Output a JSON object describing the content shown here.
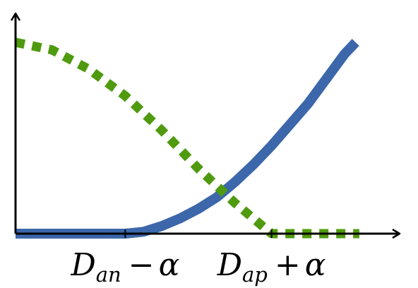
{
  "chart_data": {
    "type": "line",
    "title": "",
    "xlabel": "",
    "ylabel": "",
    "xlim": [
      0,
      1
    ],
    "ylim": [
      0,
      1
    ],
    "grid": false,
    "legend": "none",
    "x_ticks": [
      {
        "value": 0.3,
        "label_main": "D",
        "label_sub": "an",
        "label_op": "−",
        "label_tail": "α"
      },
      {
        "value": 0.7,
        "label_main": "D",
        "label_sub": "ap",
        "label_op": "+",
        "label_tail": "α"
      }
    ],
    "series": [
      {
        "style": "solid",
        "color": "#3c67aa",
        "x": [
          0,
          0.3,
          0.35,
          0.4,
          0.45,
          0.5,
          0.55,
          0.6,
          0.65,
          0.7,
          0.75,
          0.8,
          0.85,
          0.9,
          0.93
        ],
        "y": [
          0,
          0,
          0.01,
          0.04,
          0.08,
          0.13,
          0.19,
          0.27,
          0.36,
          0.46,
          0.57,
          0.68,
          0.81,
          0.94,
          1.0
        ]
      },
      {
        "style": "dashed",
        "color": "#4f9a0f",
        "x": [
          0,
          0.1,
          0.2,
          0.3,
          0.4,
          0.5,
          0.6,
          0.7,
          0.8,
          0.9,
          0.94
        ],
        "y": [
          1.0,
          0.96,
          0.86,
          0.72,
          0.54,
          0.34,
          0.16,
          0,
          0,
          0,
          0
        ]
      }
    ]
  }
}
